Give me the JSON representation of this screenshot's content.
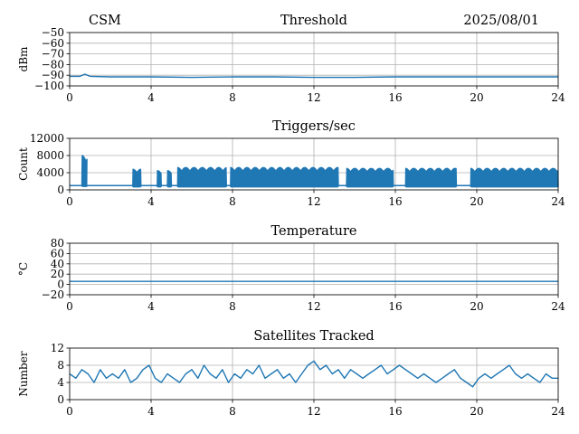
{
  "header": {
    "station": "CSM",
    "date": "2025/08/01"
  },
  "colors": {
    "series": "#1f77b4",
    "grid": "#b0b0b0"
  },
  "chart_data": [
    {
      "type": "line",
      "title": "Threshold",
      "ylabel": "dBm",
      "xlim": [
        0,
        24
      ],
      "ylim": [
        -100,
        -50
      ],
      "xticks": [
        0,
        4,
        8,
        12,
        16,
        20,
        24
      ],
      "yticks": [
        -50,
        -60,
        -70,
        -80,
        -90,
        -100
      ],
      "grid": true,
      "series": [
        {
          "x": [
            0,
            0.5,
            0.75,
            1,
            2,
            4,
            6,
            8,
            10,
            12,
            14,
            16,
            18,
            20,
            22,
            24
          ],
          "y": [
            -91,
            -91,
            -89,
            -91,
            -91.5,
            -91.5,
            -92,
            -91.5,
            -91.5,
            -92,
            -92,
            -91.5,
            -91.5,
            -91.5,
            -91.5,
            -91.5
          ]
        }
      ]
    },
    {
      "type": "line",
      "title": "Triggers/sec",
      "ylabel": "Count",
      "xlim": [
        0,
        24
      ],
      "ylim": [
        0,
        12000
      ],
      "xticks": [
        0,
        4,
        8,
        12,
        16,
        20,
        24
      ],
      "yticks": [
        0,
        4000,
        8000,
        12000
      ],
      "grid": true,
      "segments": [
        {
          "start": 0.6,
          "end": 0.85,
          "low": 800,
          "high": 8000
        },
        {
          "start": 3.1,
          "end": 3.5,
          "low": 700,
          "high": 4800
        },
        {
          "start": 4.3,
          "end": 4.5,
          "low": 700,
          "high": 4500
        },
        {
          "start": 4.8,
          "end": 5.0,
          "low": 700,
          "high": 4500
        },
        {
          "start": 5.3,
          "end": 7.7,
          "low": 700,
          "high": 5200
        },
        {
          "start": 7.9,
          "end": 13.2,
          "low": 700,
          "high": 5200
        },
        {
          "start": 13.6,
          "end": 15.9,
          "low": 700,
          "high": 5000
        },
        {
          "start": 16.5,
          "end": 19.0,
          "low": 700,
          "high": 5000
        },
        {
          "start": 19.7,
          "end": 24.0,
          "low": 700,
          "high": 5000
        }
      ],
      "baseline": 1000
    },
    {
      "type": "line",
      "title": "Temperature",
      "ylabel": "°C",
      "xlim": [
        0,
        24
      ],
      "ylim": [
        -20,
        80
      ],
      "xticks": [
        0,
        4,
        8,
        12,
        16,
        20,
        24
      ],
      "yticks": [
        -20,
        0,
        20,
        40,
        60,
        80
      ],
      "grid": true,
      "series": [
        {
          "x": [
            0,
            24
          ],
          "y": [
            6,
            6
          ]
        }
      ]
    },
    {
      "type": "line",
      "title": "Satellites Tracked",
      "ylabel": "Number",
      "xlim": [
        0,
        24
      ],
      "ylim": [
        0,
        12
      ],
      "xticks": [
        0,
        4,
        8,
        12,
        16,
        20,
        24
      ],
      "yticks": [
        0,
        4,
        8,
        12
      ],
      "grid": true,
      "series": [
        {
          "x": [
            0,
            0.3,
            0.6,
            0.9,
            1.2,
            1.5,
            1.8,
            2.1,
            2.4,
            2.7,
            3.0,
            3.3,
            3.6,
            3.9,
            4.2,
            4.5,
            4.8,
            5.1,
            5.4,
            5.7,
            6.0,
            6.3,
            6.6,
            6.9,
            7.2,
            7.5,
            7.8,
            8.1,
            8.4,
            8.7,
            9.0,
            9.3,
            9.6,
            9.9,
            10.2,
            10.5,
            10.8,
            11.1,
            11.4,
            11.7,
            12.0,
            12.3,
            12.6,
            12.9,
            13.2,
            13.5,
            13.8,
            14.1,
            14.4,
            14.7,
            15.0,
            15.3,
            15.6,
            15.9,
            16.2,
            16.5,
            16.8,
            17.1,
            17.4,
            17.7,
            18.0,
            18.3,
            18.6,
            18.9,
            19.2,
            19.5,
            19.8,
            20.1,
            20.4,
            20.7,
            21.0,
            21.3,
            21.6,
            21.9,
            22.2,
            22.5,
            22.8,
            23.1,
            23.4,
            23.7,
            24.0
          ],
          "y": [
            6,
            5,
            7,
            6,
            4,
            7,
            5,
            6,
            5,
            7,
            4,
            5,
            7,
            8,
            5,
            4,
            6,
            5,
            4,
            6,
            7,
            5,
            8,
            6,
            5,
            7,
            4,
            6,
            5,
            7,
            6,
            8,
            5,
            6,
            7,
            5,
            6,
            4,
            6,
            8,
            9,
            7,
            8,
            6,
            7,
            5,
            7,
            6,
            5,
            6,
            7,
            8,
            6,
            7,
            8,
            7,
            6,
            5,
            6,
            5,
            4,
            5,
            6,
            7,
            5,
            4,
            3,
            5,
            6,
            5,
            6,
            7,
            8,
            6,
            5,
            6,
            5,
            4,
            6,
            5,
            5
          ]
        }
      ]
    }
  ]
}
